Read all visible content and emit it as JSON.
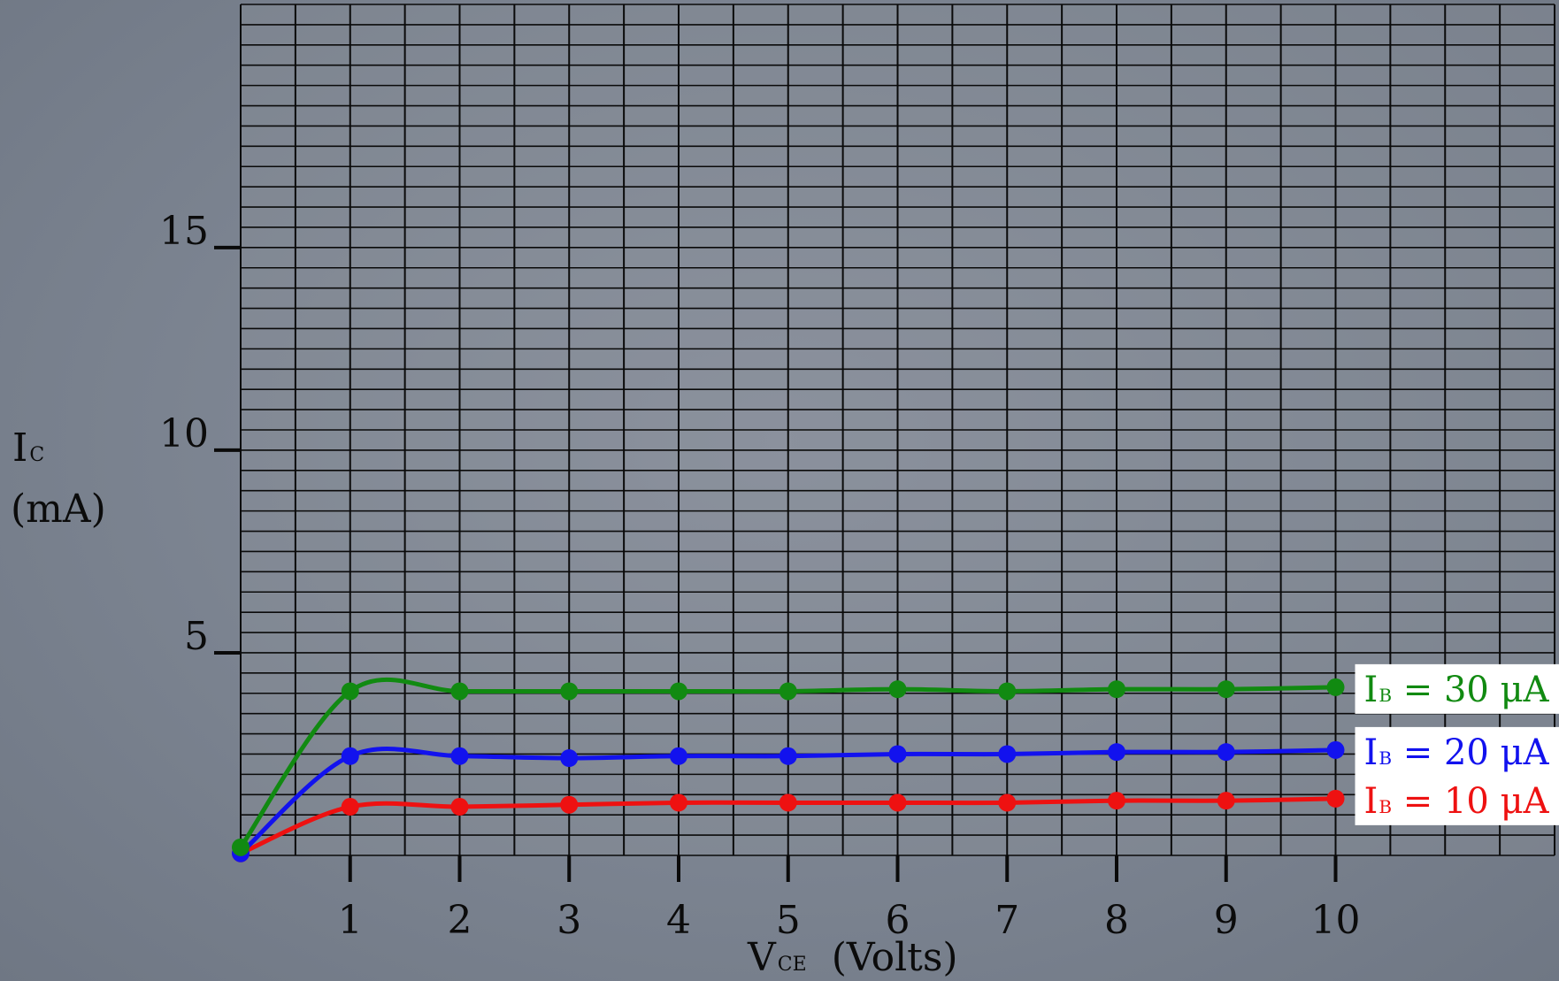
{
  "chart_data": {
    "type": "line",
    "xlabel_main": "V",
    "xlabel_sub": "CE",
    "xlabel_unit": "(Volts)",
    "ylabel_main": "I",
    "ylabel_sub": "C",
    "ylabel_unit": "(mA)",
    "xlim": [
      0,
      12
    ],
    "ylim": [
      0,
      21
    ],
    "x_ticks": [
      1,
      2,
      3,
      4,
      5,
      6,
      7,
      8,
      9,
      10
    ],
    "x_tick_labels": [
      "1",
      "2",
      "3",
      "4",
      "5",
      "6",
      "7",
      "8",
      "9",
      "10"
    ],
    "y_ticks": [
      5,
      10,
      15
    ],
    "y_tick_labels": [
      "5",
      "10",
      "15"
    ],
    "grid": true,
    "legend_placement": "right, next to line ends",
    "series": [
      {
        "label_main": "I",
        "label_sub": "B",
        "label_rest": " = 30 μA",
        "color": "#118a11",
        "x": [
          0,
          1,
          2,
          3,
          4,
          5,
          6,
          7,
          8,
          9,
          10
        ],
        "y": [
          0.2,
          4.05,
          4.05,
          4.05,
          4.05,
          4.05,
          4.1,
          4.05,
          4.1,
          4.1,
          4.15
        ]
      },
      {
        "label_main": "I",
        "label_sub": "B",
        "label_rest": " = 20 μA",
        "color": "#1212ee",
        "x": [
          0,
          1,
          2,
          3,
          4,
          5,
          6,
          7,
          8,
          9,
          10
        ],
        "y": [
          0.05,
          2.45,
          2.45,
          2.4,
          2.45,
          2.45,
          2.5,
          2.5,
          2.55,
          2.55,
          2.6
        ]
      },
      {
        "label_main": "I",
        "label_sub": "B",
        "label_rest": " = 10 μA",
        "color": "#ee1111",
        "x": [
          0,
          1,
          2,
          3,
          4,
          5,
          6,
          7,
          8,
          9,
          10
        ],
        "y": [
          0.05,
          1.2,
          1.2,
          1.25,
          1.3,
          1.3,
          1.3,
          1.3,
          1.35,
          1.35,
          1.4
        ]
      }
    ]
  }
}
